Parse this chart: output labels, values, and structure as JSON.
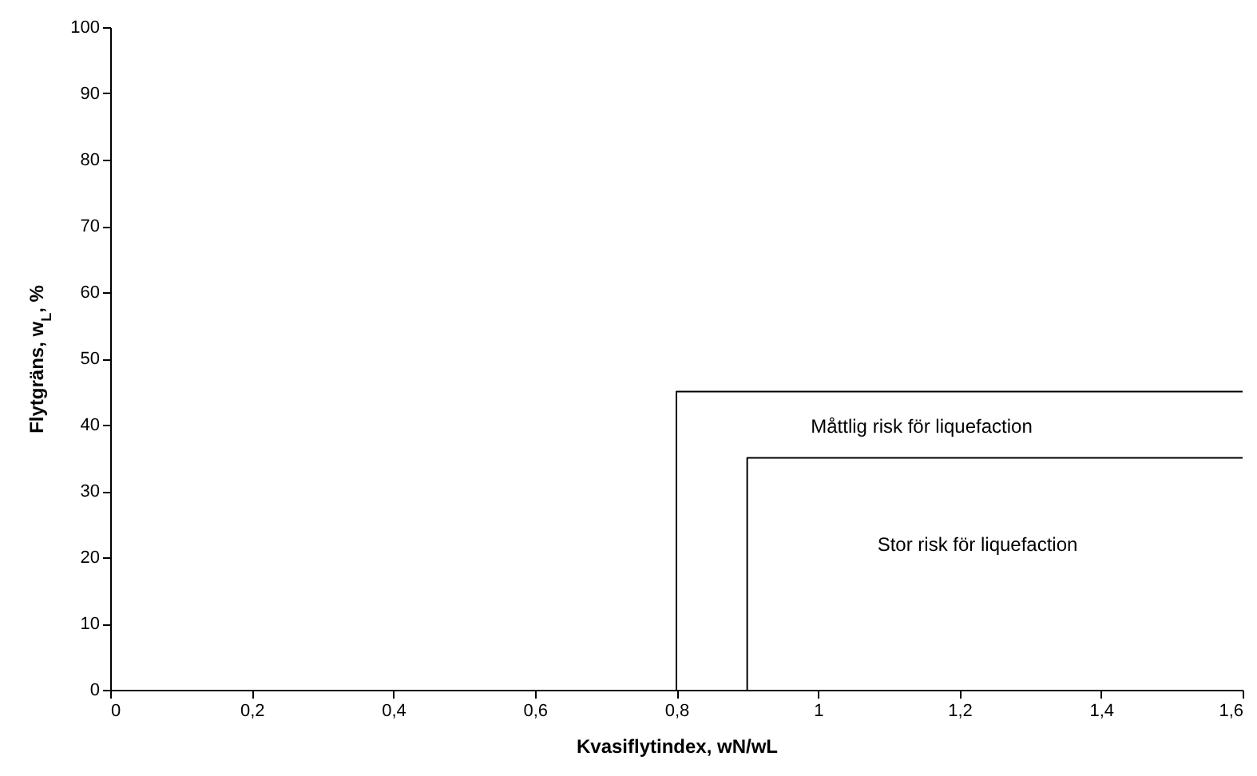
{
  "chart_data": {
    "type": "line",
    "xlabel": "Kvasiflytindex, wN/wL",
    "ylabel": "Flytgräns, w$_{L}$, %",
    "xlim": [
      0,
      1.6
    ],
    "xticks": [
      0,
      {
        "value": 0.2,
        "label": "0,2"
      },
      {
        "value": 0.4,
        "label": "0,4"
      },
      {
        "value": 0.6,
        "label": "0,6"
      },
      {
        "value": 0.8,
        "label": "0,8"
      },
      1,
      {
        "value": 1.2,
        "label": "1,2"
      },
      {
        "value": 1.4,
        "label": "1,4"
      },
      {
        "value": 1.6,
        "label": "1,6"
      }
    ],
    "ylim": [
      0,
      100
    ],
    "yticks": [
      0,
      10,
      20,
      30,
      40,
      50,
      60,
      70,
      80,
      90,
      100
    ],
    "grid": false,
    "series": [
      {
        "color": "#000000",
        "x": [
          0.8,
          0.8,
          1.6
        ],
        "values": [
          0,
          45,
          45
        ]
      },
      {
        "color": "#000000",
        "x": [
          0.9,
          0.9,
          1.6
        ],
        "values": [
          0,
          35,
          35
        ]
      }
    ],
    "annotations": [
      "Måttlig risk för liquefaction",
      "Stor risk för liquefaction"
    ]
  }
}
